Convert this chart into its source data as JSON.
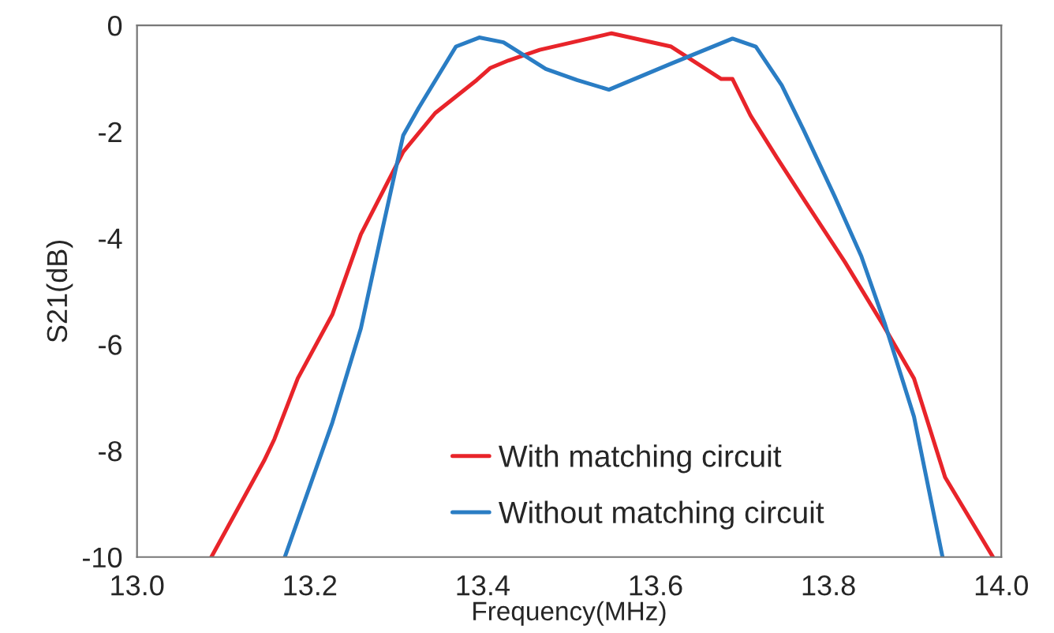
{
  "chart_data": {
    "type": "line",
    "xlabel": "Frequency(MHz)",
    "ylabel": "S21(dB)",
    "xlim": [
      13.0,
      14.0
    ],
    "xticks": [
      {
        "value": 13.0,
        "label": "13.0"
      },
      {
        "value": 13.2,
        "label": "13.2"
      },
      {
        "value": 13.4,
        "label": "13.4"
      },
      {
        "value": 13.6,
        "label": "13.6"
      },
      {
        "value": 13.8,
        "label": "13.8"
      },
      {
        "value": 14.0,
        "label": "14.0"
      }
    ],
    "ylim": [
      -10,
      0
    ],
    "yticks": [
      -10,
      -8,
      -6,
      -4,
      -2,
      0
    ],
    "grid": false,
    "legend": "bottom",
    "line_style": "solid",
    "marker": "none",
    "series": [
      {
        "name": "With matching circuit",
        "color": "#e8242a",
        "x": [
          13.086,
          13.147,
          13.159,
          13.186,
          13.226,
          13.259,
          13.308,
          13.345,
          13.393,
          13.409,
          13.43,
          13.466,
          13.549,
          13.618,
          13.676,
          13.689,
          13.71,
          13.74,
          13.771,
          13.819,
          13.862,
          13.899,
          13.935,
          13.99
        ],
        "values": [
          -10,
          -8.19,
          -7.78,
          -6.64,
          -5.44,
          -3.93,
          -2.38,
          -1.65,
          -1.03,
          -0.8,
          -0.66,
          -0.46,
          -0.15,
          -0.4,
          -1.01,
          -1.01,
          -1.7,
          -2.48,
          -3.26,
          -4.45,
          -5.6,
          -6.64,
          -8.5,
          -9.99
        ]
      },
      {
        "name": "Without matching circuit",
        "color": "#2a7dc4",
        "x": [
          13.171,
          13.226,
          13.259,
          13.284,
          13.308,
          13.326,
          13.369,
          13.396,
          13.424,
          13.473,
          13.509,
          13.546,
          13.618,
          13.689,
          13.716,
          13.746,
          13.771,
          13.807,
          13.838,
          13.865,
          13.899,
          13.932
        ],
        "values": [
          -10,
          -7.47,
          -5.7,
          -3.83,
          -2.07,
          -1.55,
          -0.4,
          -0.23,
          -0.32,
          -0.82,
          -1.03,
          -1.21,
          -0.72,
          -0.25,
          -0.4,
          -1.13,
          -1.96,
          -3.21,
          -4.34,
          -5.6,
          -7.36,
          -10
        ]
      }
    ]
  }
}
